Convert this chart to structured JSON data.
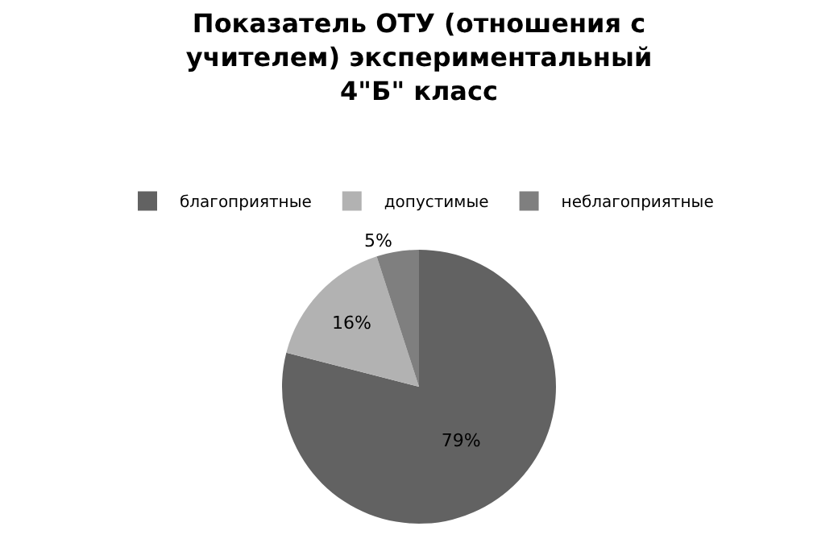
{
  "chart_data": {
    "type": "pie",
    "title": "Показатель ОТУ (отношения с учителем) экспериментальный 4\"Б\" класс",
    "categories": [
      "благоприятные",
      "допустимые",
      "неблагоприятные"
    ],
    "values": [
      79,
      16,
      5
    ],
    "colors": [
      "#626262",
      "#b2b2b2",
      "#7f7f7f"
    ],
    "value_labels": [
      "79%",
      "16%",
      "5%"
    ],
    "legend": "top"
  }
}
